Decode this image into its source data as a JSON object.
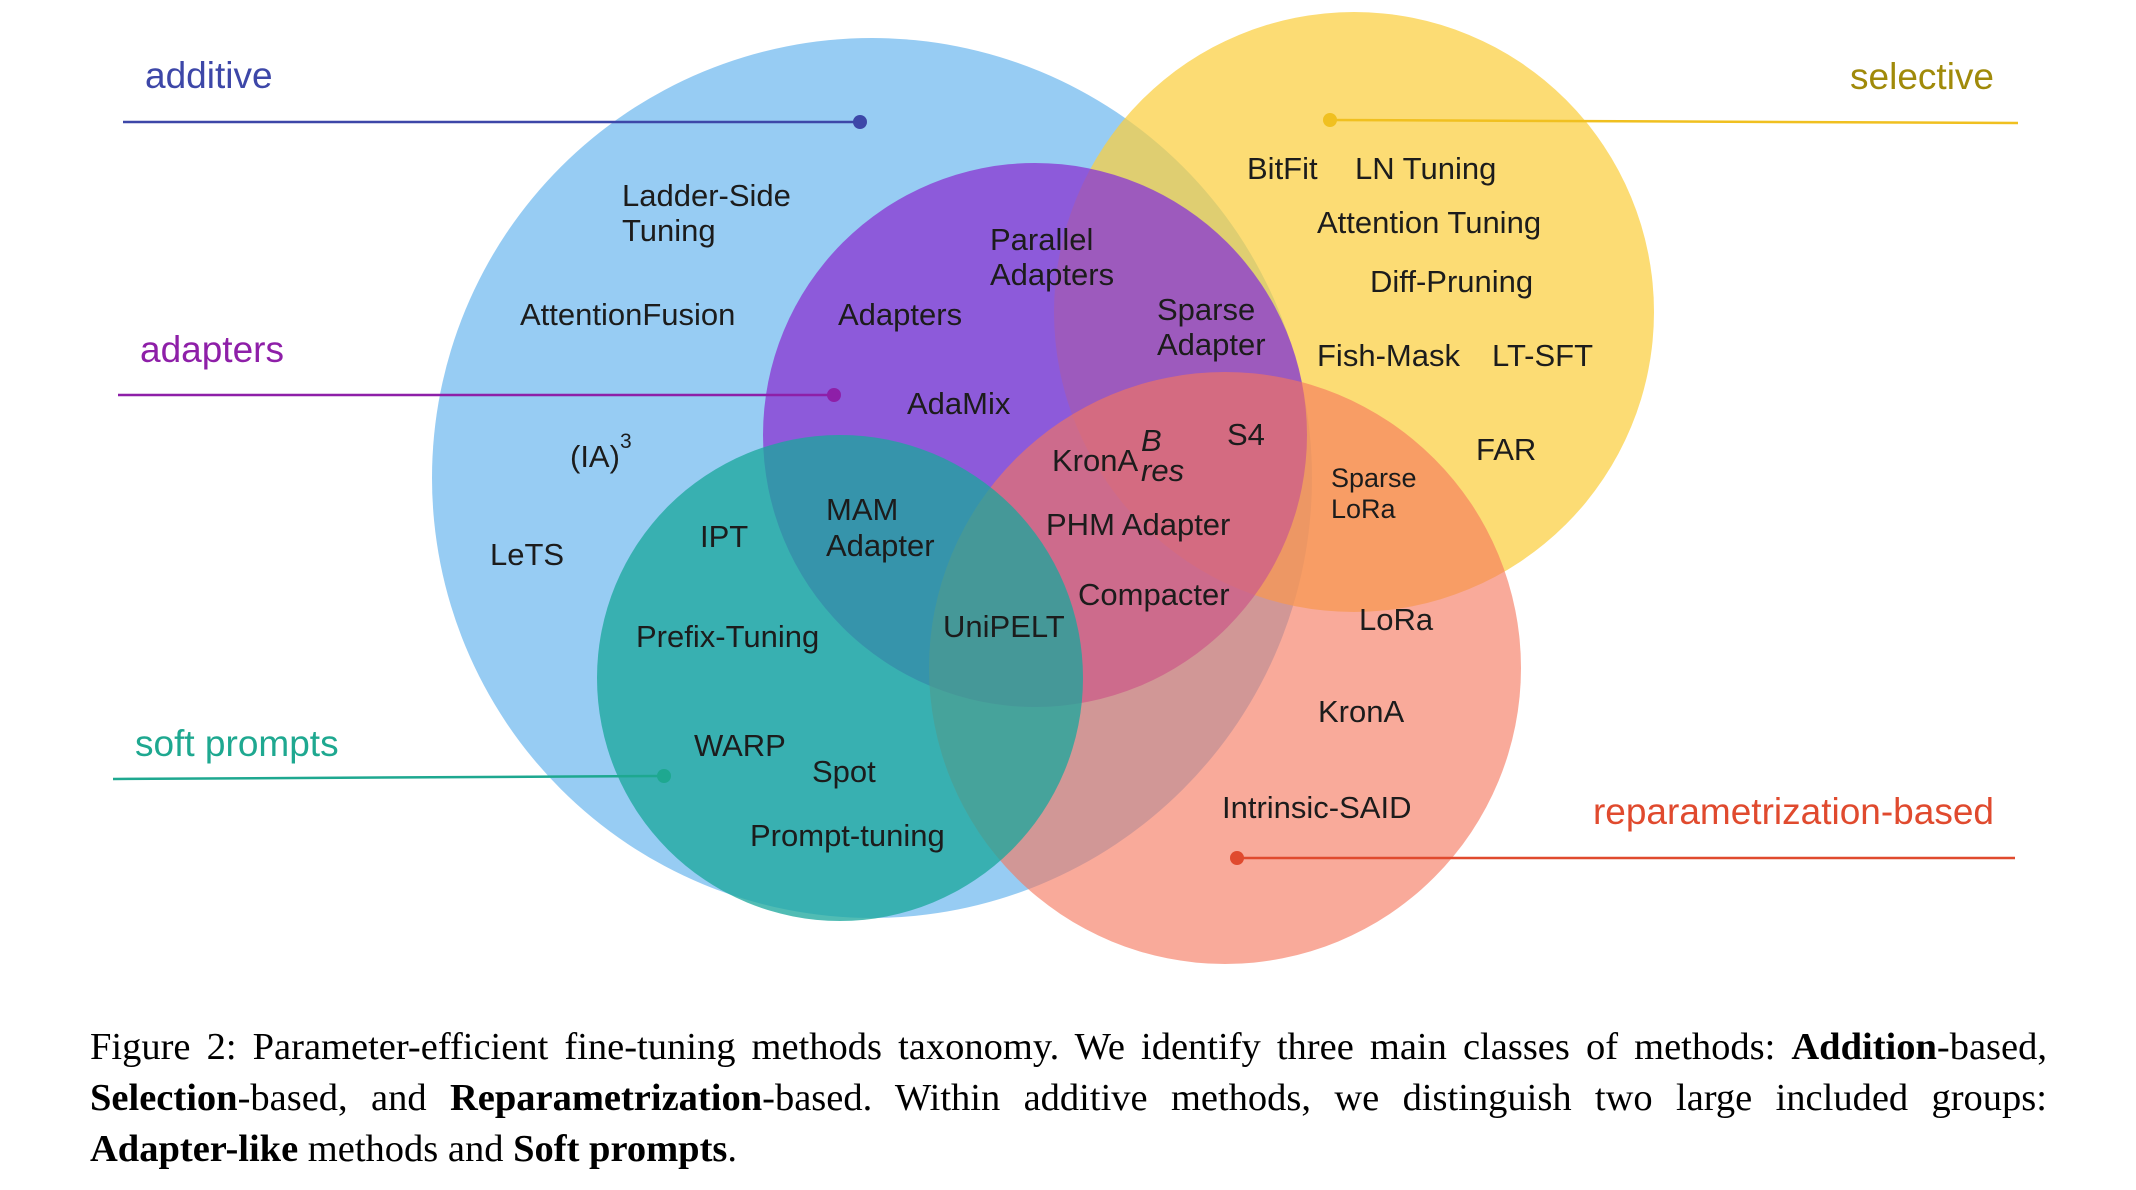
{
  "colors": {
    "additive": "#3d47a8",
    "adapters": "#8e1fa8",
    "soft_prompts": "#1ea890",
    "selective": "#a08a0a",
    "reparametrization": "#e04a2e",
    "additive_fill": "#66b4ee",
    "adapters_fill": "#8a3ad2",
    "soft_prompts_fill": "#1aa79c",
    "selective_fill": "#fbcf3e",
    "reparametrization_fill": "#f5765c"
  },
  "groups": {
    "additive": "additive",
    "adapters": "adapters",
    "soft_prompts": "soft prompts",
    "selective": "selective",
    "reparametrization": "reparametrization-based"
  },
  "methods": {
    "ladder_side_1": "Ladder-Side",
    "ladder_side_2": "Tuning",
    "attention_fusion": "AttentionFusion",
    "ia3": "(IA)",
    "ia3_sup": "3",
    "lets": "LeTS",
    "parallel_1": "Parallel",
    "parallel_2": "Adapters",
    "adapters": "Adapters",
    "adamix": "AdaMix",
    "mam_1": "MAM",
    "mam_2": "Adapter",
    "ipt": "IPT",
    "prefix_tuning": "Prefix-Tuning",
    "warp": "WARP",
    "spot": "Spot",
    "prompt_tuning": "Prompt-tuning",
    "sparse_adapter_1": "Sparse",
    "sparse_adapter_2": "Adapter",
    "s4": "S4",
    "krona_res": "KronA",
    "krona_res_sup": "B",
    "krona_res_sub": "res",
    "phm_adapter": "PHM Adapter",
    "compacter": "Compacter",
    "unipelt": "UniPELT",
    "bitfit": "BitFit",
    "ln_tuning": "LN Tuning",
    "attention_tuning": "Attention Tuning",
    "diff_pruning": "Diff-Pruning",
    "fish_mask": "Fish-Mask",
    "lt_sft": "LT-SFT",
    "far": "FAR",
    "sparse_lora_1": "Sparse",
    "sparse_lora_2": "LoRa",
    "lora": "LoRa",
    "krona": "KronA",
    "intrinsic_said": "Intrinsic-SAID"
  },
  "caption": {
    "p1": "Figure 2: Parameter-efficient fine-tuning methods taxonomy.  We identify three main classes of methods: ",
    "b1": "Addition",
    "p2": "-based, ",
    "b2": "Selection",
    "p3": "-based, and ",
    "b3": "Reparametrization",
    "p4": "-based.  Within additive methods, we distinguish two large included groups: ",
    "b4": "Adapter-like",
    "p5": " methods and ",
    "b5": "Soft prompts",
    "p6": "."
  }
}
